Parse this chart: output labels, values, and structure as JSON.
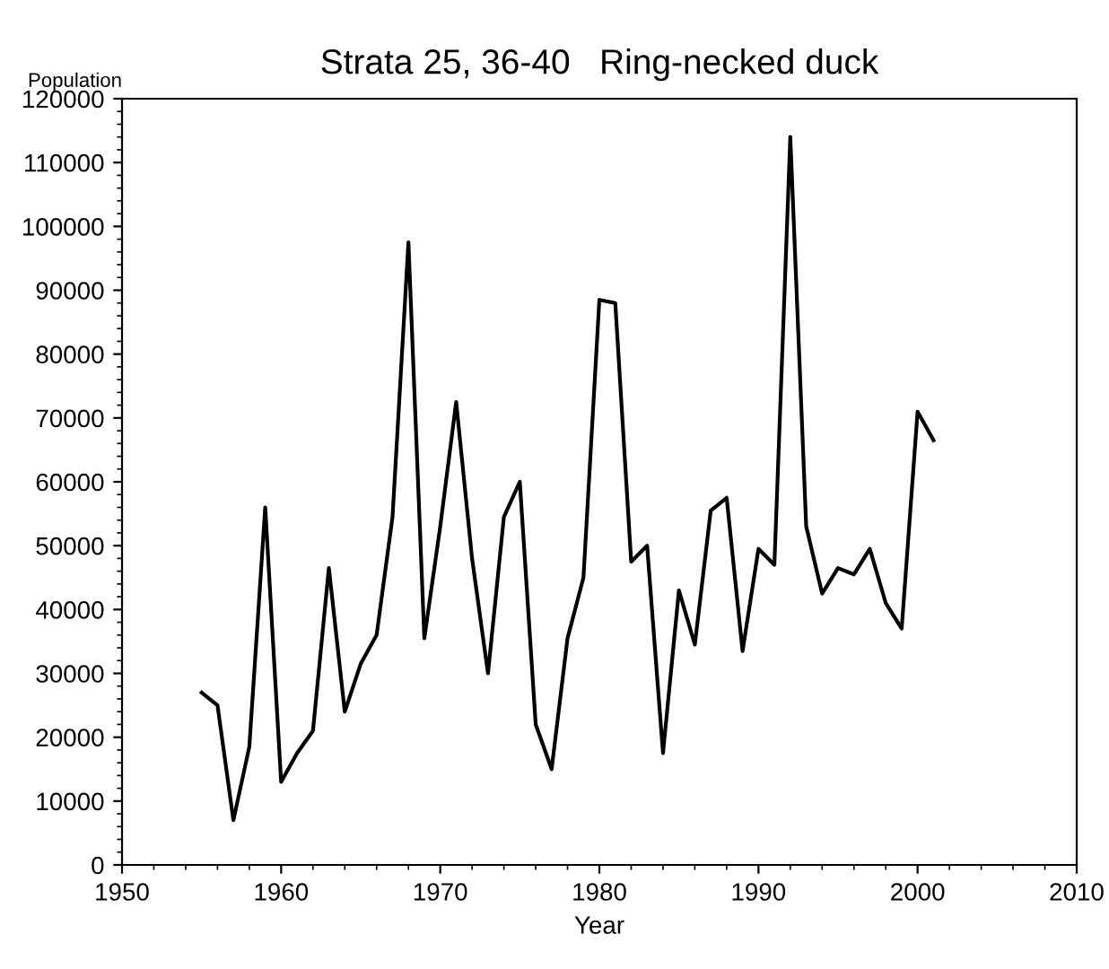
{
  "chart_data": {
    "type": "line",
    "title": "Strata 25, 36-40   Ring-necked duck",
    "xlabel": "Year",
    "ylabel": "Population",
    "x": [
      1955,
      1956,
      1957,
      1958,
      1959,
      1960,
      1961,
      1962,
      1963,
      1964,
      1965,
      1966,
      1967,
      1968,
      1969,
      1970,
      1971,
      1972,
      1973,
      1974,
      1975,
      1976,
      1977,
      1978,
      1979,
      1980,
      1981,
      1982,
      1983,
      1984,
      1985,
      1986,
      1987,
      1988,
      1989,
      1990,
      1991,
      1992,
      1993,
      1994,
      1995,
      1996,
      1997,
      1998,
      1999,
      2000,
      2001
    ],
    "series": [
      {
        "color": "#000000",
        "values": [
          27000,
          25000,
          7000,
          18500,
          56000,
          13000,
          17500,
          21000,
          46500,
          24000,
          31500,
          36000,
          54500,
          97500,
          35500,
          53000,
          72500,
          48000,
          30000,
          54500,
          60000,
          22000,
          15000,
          35500,
          45000,
          88500,
          88000,
          47500,
          50000,
          17500,
          43000,
          34500,
          55500,
          57500,
          33500,
          49500,
          47000,
          114000,
          53000,
          42500,
          46500,
          45500,
          49500,
          41000,
          37000,
          71000,
          66500
        ]
      }
    ],
    "xlim": [
      1950,
      2010
    ],
    "xticks": [
      1950,
      1960,
      1970,
      1980,
      1990,
      2000,
      2010
    ],
    "ylim": [
      0,
      120000
    ],
    "yticks": [
      0,
      10000,
      20000,
      30000,
      40000,
      50000,
      60000,
      70000,
      80000,
      90000,
      100000,
      110000,
      120000
    ],
    "marker": "none",
    "line_style": "solid"
  }
}
